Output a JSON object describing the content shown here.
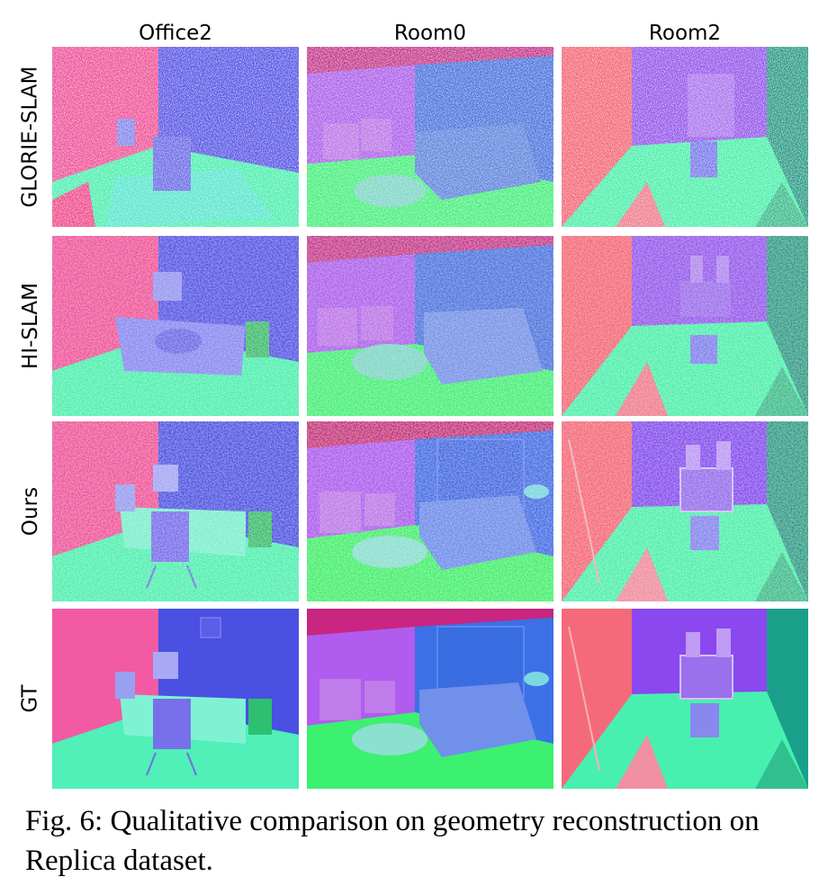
{
  "columns": [
    "Office2",
    "Room0",
    "Room2"
  ],
  "rows": [
    "GLORIE-SLAM",
    "HI-SLAM",
    "Ours",
    "GT"
  ],
  "caption": "Fig. 6: Qualitative comparison on geometry reconstruction on Replica dataset.",
  "colors": {
    "wall_pink": "#f0529e",
    "wall_blue": "#4e52e3",
    "wall_violet": "#a050f0",
    "floor_green": "#46f0a8",
    "floor_lime": "#3cf070",
    "ceiling_magenta": "#d02080",
    "wall_salmon": "#f56a7a",
    "wall_teal": "#1aa08a"
  }
}
